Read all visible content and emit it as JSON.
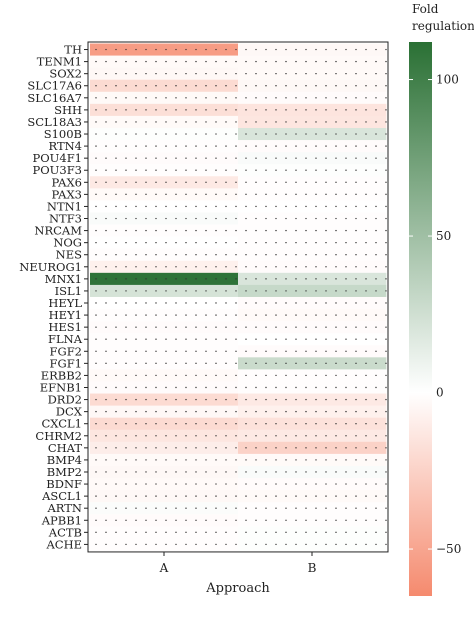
{
  "chart_data": {
    "type": "heatmap",
    "title": "",
    "xlabel": "Approach",
    "ylabel": "",
    "x_categories": [
      "A",
      "B"
    ],
    "y_categories": [
      "TH",
      "TENM1",
      "SOX2",
      "SLC17A6",
      "SLC16A7",
      "SHH",
      "SCL18A3",
      "S100B",
      "RTN4",
      "POU4F1",
      "POU3F3",
      "PAX6",
      "PAX3",
      "NTN1",
      "NTF3",
      "NRCAM",
      "NOG",
      "NES",
      "NEUROG1",
      "MNX1",
      "ISL1",
      "HEYL",
      "HEY1",
      "HES1",
      "FLNA",
      "FGF2",
      "FGF1",
      "ERBB2",
      "EFNB1",
      "DRD2",
      "DCX",
      "CXCL1",
      "CHRM2",
      "CHAT",
      "BMP4",
      "BMP2",
      "BDNF",
      "ASCL1",
      "ARTN",
      "APBB1",
      "ACTB",
      "ACHE"
    ],
    "values": [
      [
        -55,
        -4
      ],
      [
        -3,
        -3
      ],
      [
        -4,
        -3
      ],
      [
        -20,
        -4
      ],
      [
        -3,
        -2
      ],
      [
        -18,
        -15
      ],
      [
        -3,
        -14
      ],
      [
        1,
        20
      ],
      [
        -1,
        -2
      ],
      [
        -2,
        3
      ],
      [
        -1,
        1
      ],
      [
        -12,
        -1
      ],
      [
        -3,
        -1
      ],
      [
        0,
        0
      ],
      [
        3,
        -1
      ],
      [
        -1,
        -1
      ],
      [
        0,
        -1
      ],
      [
        -1,
        -1
      ],
      [
        -8,
        -2
      ],
      [
        110,
        20
      ],
      [
        22,
        30
      ],
      [
        0,
        -2
      ],
      [
        -1,
        -3
      ],
      [
        -2,
        -2
      ],
      [
        -1,
        0
      ],
      [
        -1,
        -2
      ],
      [
        -1,
        28
      ],
      [
        -3,
        -1
      ],
      [
        -2,
        -1
      ],
      [
        -20,
        -12
      ],
      [
        -4,
        -8
      ],
      [
        -20,
        -16
      ],
      [
        -14,
        -12
      ],
      [
        -10,
        -25
      ],
      [
        -3,
        -3
      ],
      [
        -4,
        3
      ],
      [
        -3,
        -2
      ],
      [
        -4,
        -3
      ],
      [
        2,
        -1
      ],
      [
        -2,
        -1
      ],
      [
        -1,
        1
      ],
      [
        -1,
        1
      ]
    ],
    "color_scale": {
      "min": -65,
      "max": 112,
      "low_color": "#f58a6e",
      "mid_color": "#ffffff",
      "high_color": "#2a7034"
    },
    "legend": {
      "title_lines": [
        "Fold",
        "regulation"
      ],
      "ticks": [
        100,
        50,
        0,
        -50
      ],
      "placement": "right"
    }
  }
}
